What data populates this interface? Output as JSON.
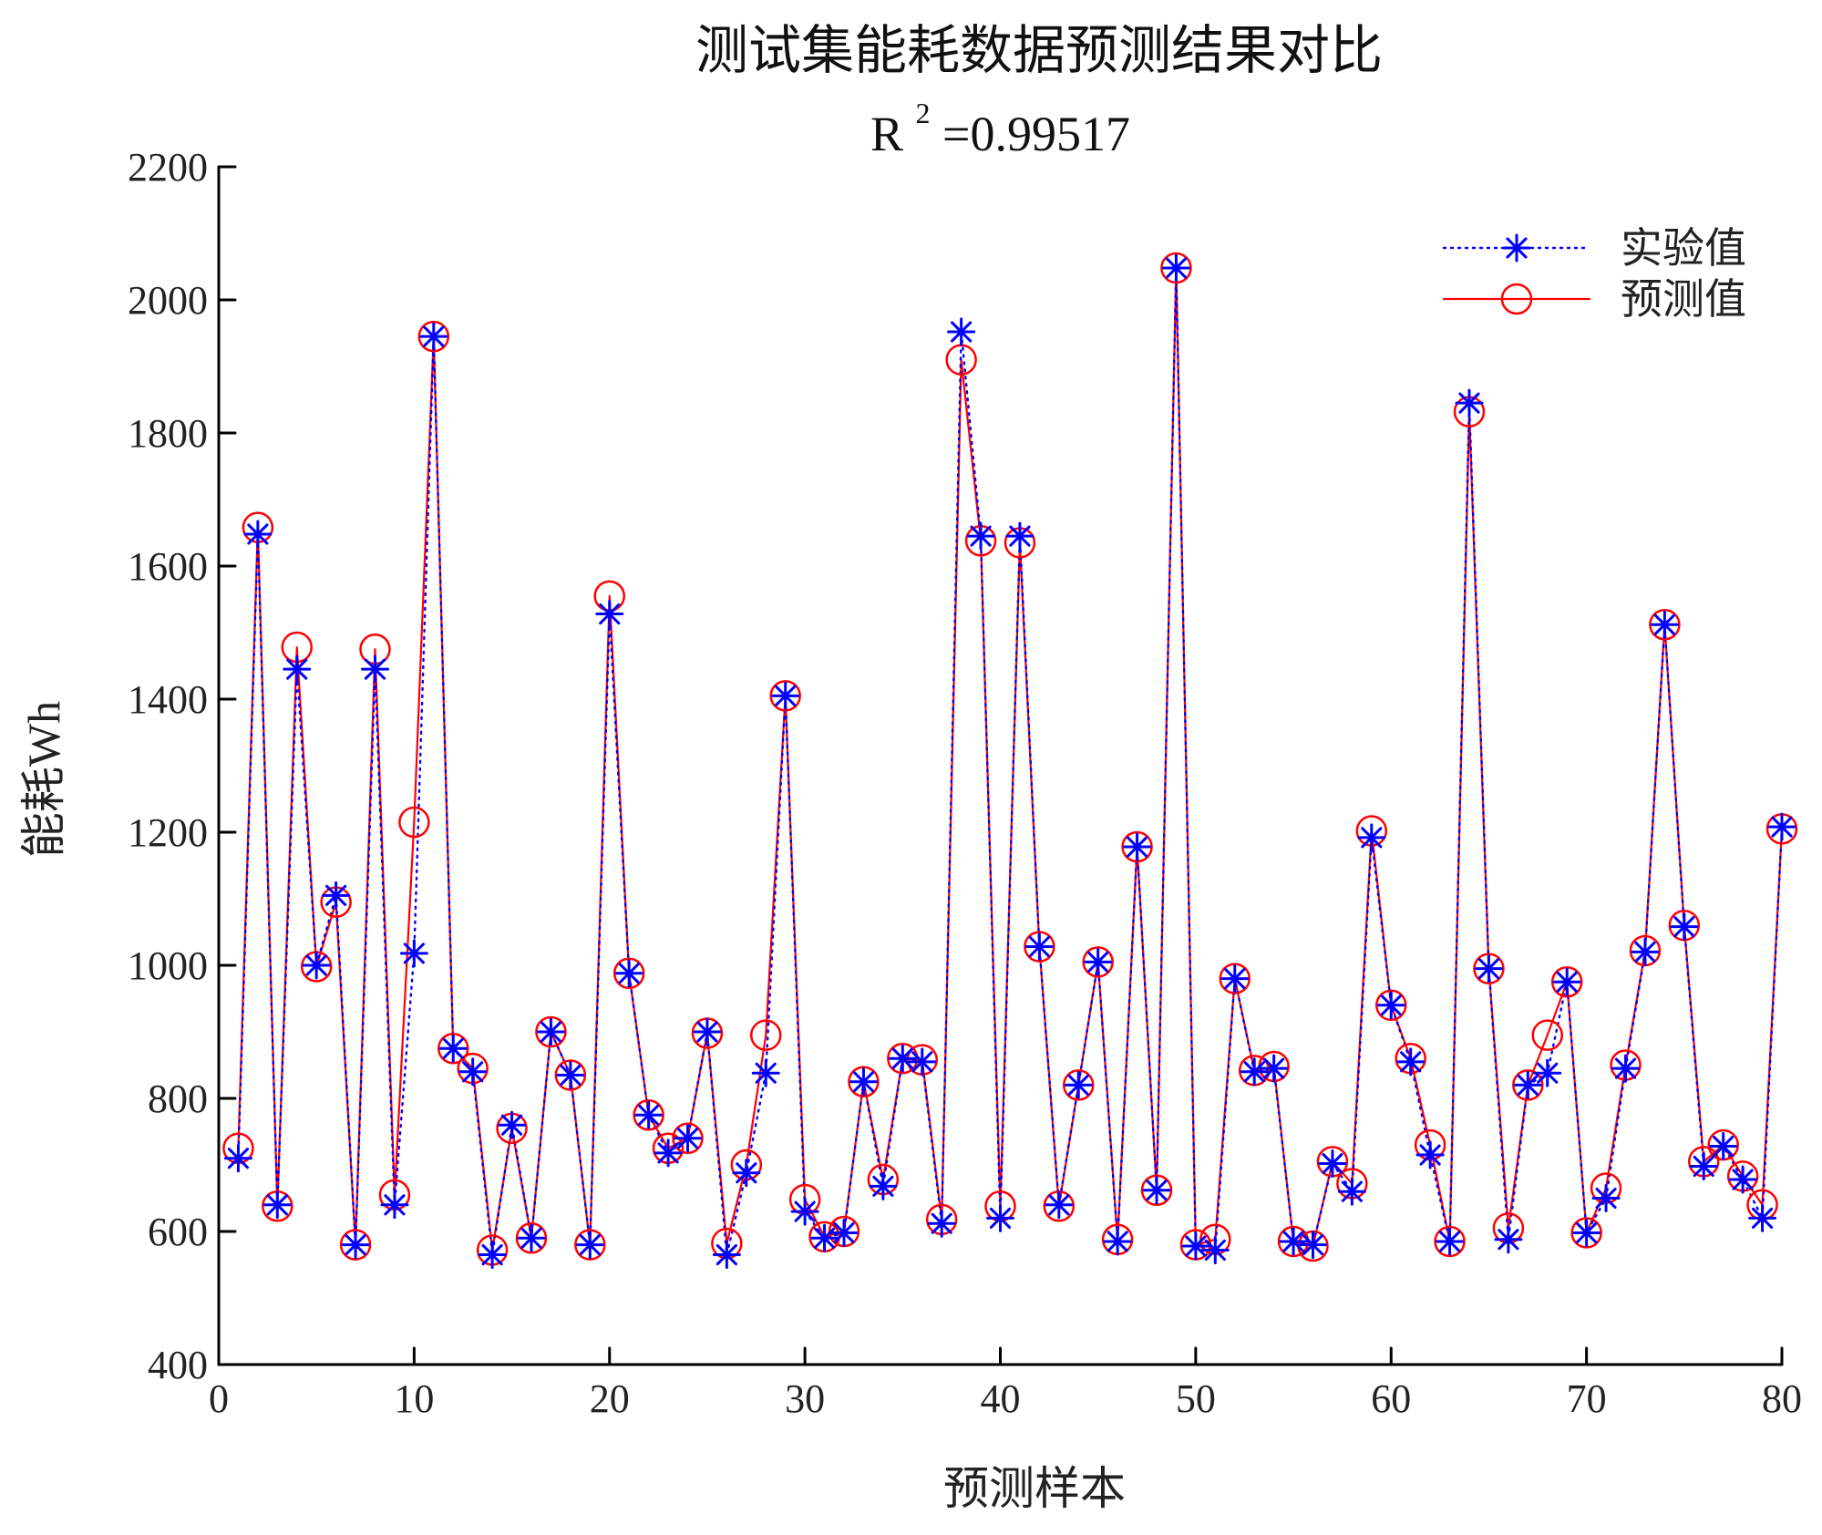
{
  "chart_data": {
    "type": "line",
    "title": "测试集能耗数据预测结果对比",
    "annotation": {
      "prefix": "R",
      "superscript": "2",
      "suffix": " =0.99517"
    },
    "xlabel": "预测样本",
    "ylabel": "能耗Wh",
    "xlim": [
      0,
      80
    ],
    "ylim": [
      400,
      2200
    ],
    "xticks": [
      0,
      10,
      20,
      30,
      40,
      50,
      60,
      70,
      80
    ],
    "yticks": [
      400,
      600,
      800,
      1000,
      1200,
      1400,
      1600,
      1800,
      2000,
      2200
    ],
    "grid": false,
    "legend_position": "top-right",
    "x": [
      1,
      2,
      3,
      4,
      5,
      6,
      7,
      8,
      9,
      10,
      11,
      12,
      13,
      14,
      15,
      16,
      17,
      18,
      19,
      20,
      21,
      22,
      23,
      24,
      25,
      26,
      27,
      28,
      29,
      30,
      31,
      32,
      33,
      34,
      35,
      36,
      37,
      38,
      39,
      40,
      41,
      42,
      43,
      44,
      45,
      46,
      47,
      48,
      49,
      50,
      51,
      52,
      53,
      54,
      55,
      56,
      57,
      58,
      59,
      60,
      61,
      62,
      63,
      64,
      65,
      66,
      67,
      68,
      69,
      70,
      71,
      72,
      73,
      74,
      75,
      76,
      77,
      78,
      79,
      80
    ],
    "series": [
      {
        "name": "实验值",
        "color": "#0000ff",
        "line_style": "dotted",
        "marker": "asterisk",
        "values": [
          710,
          1648,
          640,
          1445,
          1000,
          1105,
          580,
          1445,
          640,
          1018,
          1945,
          875,
          840,
          565,
          760,
          590,
          900,
          835,
          580,
          1528,
          988,
          775,
          718,
          740,
          900,
          565,
          688,
          838,
          1405,
          630,
          590,
          598,
          825,
          668,
          860,
          855,
          612,
          1952,
          1645,
          620,
          1645,
          1028,
          640,
          820,
          1005,
          585,
          1178,
          662,
          2048,
          578,
          572,
          980,
          840,
          845,
          585,
          580,
          702,
          660,
          1192,
          940,
          855,
          715,
          585,
          1845,
          995,
          588,
          820,
          838,
          975,
          598,
          650,
          845,
          1020,
          1512,
          1058,
          698,
          728,
          678,
          620,
          1208
        ]
      },
      {
        "name": "预测值",
        "color": "#ff0000",
        "line_style": "solid",
        "marker": "circle",
        "values": [
          725,
          1658,
          638,
          1478,
          998,
          1095,
          580,
          1475,
          655,
          1215,
          1945,
          875,
          845,
          572,
          755,
          590,
          900,
          835,
          580,
          1555,
          988,
          775,
          725,
          740,
          898,
          582,
          700,
          895,
          1405,
          648,
          592,
          600,
          825,
          678,
          860,
          858,
          618,
          1910,
          1638,
          638,
          1635,
          1028,
          638,
          820,
          1005,
          588,
          1178,
          662,
          2048,
          580,
          588,
          980,
          842,
          848,
          585,
          578,
          705,
          672,
          1202,
          940,
          860,
          730,
          585,
          1832,
          995,
          605,
          820,
          895,
          975,
          598,
          665,
          850,
          1022,
          1512,
          1060,
          705,
          730,
          683,
          640,
          1205
        ]
      }
    ]
  }
}
